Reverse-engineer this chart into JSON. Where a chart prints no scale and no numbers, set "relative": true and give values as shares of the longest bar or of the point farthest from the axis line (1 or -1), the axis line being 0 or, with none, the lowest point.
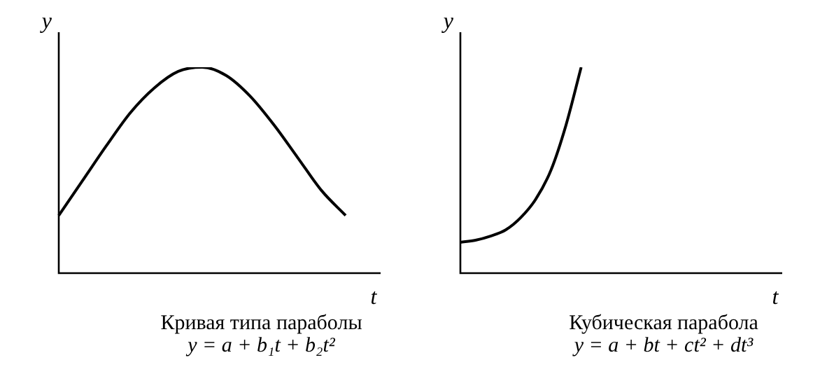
{
  "chart_data": [
    {
      "type": "line",
      "relative": true,
      "xlabel": "t",
      "ylabel": "y",
      "categories": [
        null,
        null,
        null,
        null,
        null,
        null,
        null,
        null,
        null,
        null,
        null,
        null,
        null
      ],
      "series": [
        {
          "color": "#000000",
          "values": [
            0.28,
            0.45,
            0.62,
            0.78,
            0.9,
            0.98,
            1.0,
            0.96,
            0.86,
            0.72,
            0.56,
            0.4,
            0.28
          ]
        }
      ],
      "marker": "none",
      "legend": false,
      "annotations": [
        "Кривая типа параболы",
        "y = a + b₁t + b₂t²"
      ]
    },
    {
      "type": "line",
      "relative": true,
      "xlabel": "t",
      "ylabel": "y",
      "categories": [
        null,
        null,
        null,
        null,
        null,
        null,
        null,
        null,
        null,
        null,
        null,
        null,
        null,
        null,
        null,
        null,
        null,
        null,
        null,
        null
      ],
      "series": [
        {
          "color": "#000000",
          "values": [
            0.15,
            0.16,
            0.18,
            0.21,
            0.27,
            0.36,
            0.5,
            0.72,
            1.0,
            null,
            null,
            null,
            null,
            null,
            null,
            null,
            null,
            null,
            null,
            null
          ]
        }
      ],
      "marker": "none",
      "legend": false,
      "annotations": [
        "Кубическая парабола",
        "y = a + bt + ct² + dt³"
      ]
    }
  ]
}
